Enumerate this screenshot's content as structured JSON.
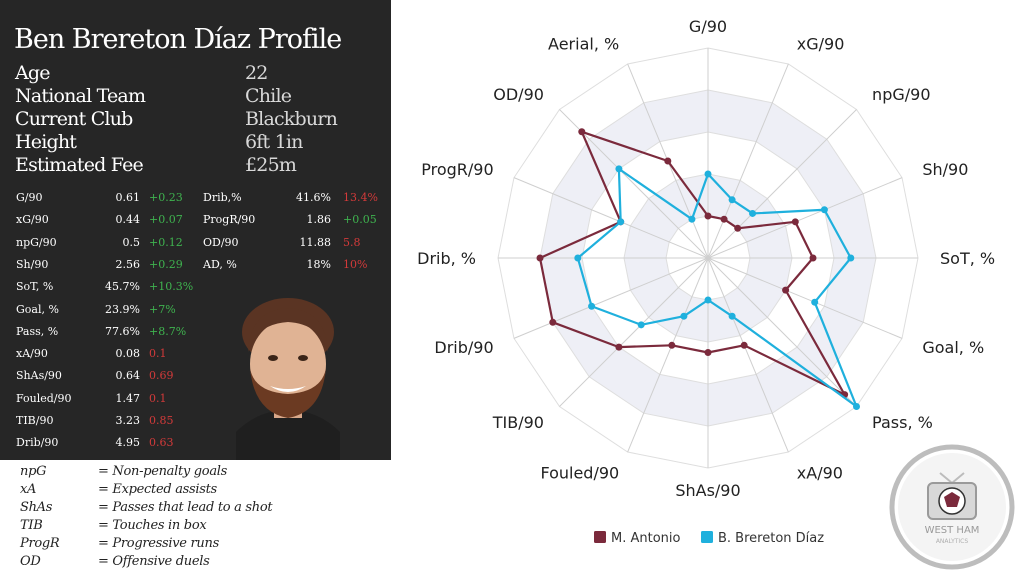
{
  "profile": {
    "title": "Ben Brereton Díaz Profile",
    "info": [
      {
        "label": "Age",
        "value": "22"
      },
      {
        "label": "National Team",
        "value": "Chile"
      },
      {
        "label": "Current Club",
        "value": "Blackburn"
      },
      {
        "label": "Height",
        "value": "6ft 1in"
      },
      {
        "label": "Estimated Fee",
        "value": "£25m"
      }
    ],
    "stats_left": [
      {
        "name": "G/90",
        "value": "0.61",
        "diff": "+0.23",
        "sign": "pos"
      },
      {
        "name": "xG/90",
        "value": "0.44",
        "diff": "+0.07",
        "sign": "pos"
      },
      {
        "name": "npG/90",
        "value": "0.5",
        "diff": "+0.12",
        "sign": "pos"
      },
      {
        "name": "Sh/90",
        "value": "2.56",
        "diff": "+0.29",
        "sign": "pos"
      },
      {
        "name": "SoT, %",
        "value": "45.7%",
        "diff": "+10.3%",
        "sign": "pos"
      },
      {
        "name": "Goal, %",
        "value": "23.9%",
        "diff": "+7%",
        "sign": "pos"
      },
      {
        "name": "Pass, %",
        "value": "77.6%",
        "diff": "+8.7%",
        "sign": "pos"
      },
      {
        "name": "xA/90",
        "value": "0.08",
        "diff": "0.1",
        "sign": "neg"
      },
      {
        "name": "ShAs/90",
        "value": "0.64",
        "diff": "0.69",
        "sign": "neg"
      },
      {
        "name": "Fouled/90",
        "value": "1.47",
        "diff": "0.1",
        "sign": "neg"
      },
      {
        "name": "TIB/90",
        "value": "3.23",
        "diff": "0.85",
        "sign": "neg"
      },
      {
        "name": "Drib/90",
        "value": "4.95",
        "diff": "0.63",
        "sign": "neg"
      }
    ],
    "stats_right": [
      {
        "name": "Drib,%",
        "value": "41.6%",
        "diff": "13.4%",
        "sign": "neg"
      },
      {
        "name": "ProgR/90",
        "value": "1.86",
        "diff": "+0.05",
        "sign": "pos"
      },
      {
        "name": "OD/90",
        "value": "11.88",
        "diff": "5.8",
        "sign": "neg"
      },
      {
        "name": "AD, %",
        "value": "18%",
        "diff": "10%",
        "sign": "neg"
      }
    ]
  },
  "abbreviations": [
    {
      "key": "npG",
      "def": "= Non-penalty goals"
    },
    {
      "key": "xA",
      "def": "= Expected assists"
    },
    {
      "key": "ShAs",
      "def": "= Passes that lead to a shot"
    },
    {
      "key": "TIB",
      "def": "= Touches in box"
    },
    {
      "key": "ProgR",
      "def": "= Progressive runs"
    },
    {
      "key": "OD",
      "def": "= Offensive duels"
    }
  ],
  "chart_data": {
    "type": "radar",
    "axes": [
      "G/90",
      "xG/90",
      "npG/90",
      "Sh/90",
      "SoT, %",
      "Goal, %",
      "Pass, %",
      "xA/90",
      "ShAs/90",
      "Fouled/90",
      "TIB/90",
      "Drib/90",
      "Drib, %",
      "ProgR/90",
      "OD/90",
      "Aerial, %"
    ],
    "rings": 5,
    "series": [
      {
        "name": "M. Antonio",
        "color": "#7b2a3c",
        "values": [
          0.2,
          0.2,
          0.2,
          0.45,
          0.5,
          0.4,
          0.92,
          0.45,
          0.45,
          0.45,
          0.6,
          0.8,
          0.8,
          0.45,
          0.85,
          0.5
        ]
      },
      {
        "name": "B. Brereton Díaz",
        "color": "#1fb0dd",
        "values": [
          0.4,
          0.3,
          0.3,
          0.6,
          0.68,
          0.55,
          1.0,
          0.3,
          0.2,
          0.3,
          0.45,
          0.6,
          0.62,
          0.45,
          0.6,
          0.2
        ]
      }
    ]
  },
  "logo": {
    "text": "WEST HAM",
    "subtext": "ANALYTICS"
  }
}
